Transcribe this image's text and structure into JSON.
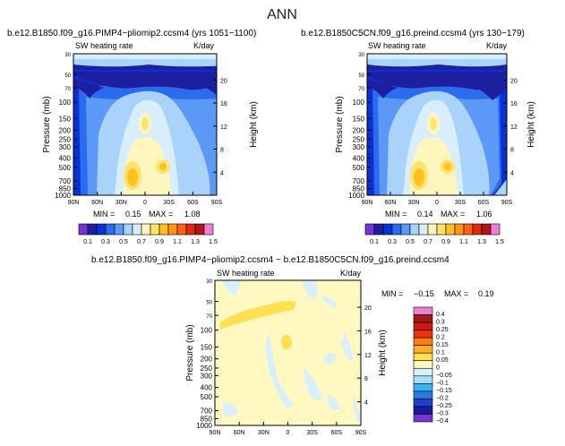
{
  "page": {
    "title": "ANN"
  },
  "chart_data": [
    {
      "type": "heatmap",
      "title": "b.e12.B1850.f09_g16.PIMP4−pliomip2.ccsm4 (yrs 1051−1100)",
      "left_label": "SW heating rate",
      "right_label": "K/day",
      "ylabel": "Pressure (mb)",
      "y2label": "Height (km)",
      "xticks": [
        "90N",
        "60N",
        "30N",
        "0",
        "30S",
        "60S",
        "90S"
      ],
      "yticks": [
        "1000",
        "850",
        "700",
        "500",
        "400",
        "300",
        "250",
        "200",
        "150",
        "100",
        "70",
        "50",
        "30"
      ],
      "y2ticks": [
        "4",
        "8",
        "12",
        "16",
        "20"
      ],
      "stats": {
        "min_label": "MIN =",
        "min": "0.15",
        "max_label": "MAX =",
        "max": "1.08"
      },
      "colorbar": {
        "labels": [
          "0.1",
          "0.3",
          "0.5",
          "0.7",
          "0.9",
          "1.1",
          "1.3",
          "1.5"
        ],
        "colors": [
          "#7b2fd6",
          "#1e1ea0",
          "#0a2fd2",
          "#2b6bf0",
          "#5c98f5",
          "#a9d3fb",
          "#d9eefc",
          "#fff6be",
          "#ffe36b",
          "#ffc020",
          "#ff9414",
          "#f86210",
          "#e02a10",
          "#b01818",
          "#ee7fd0"
        ]
      }
    },
    {
      "type": "heatmap",
      "title": "b.e12.B1850C5CN.f09_g16.preind.ccsm4 (yrs 130−179)",
      "left_label": "SW heating rate",
      "right_label": "K/day",
      "ylabel": "Pressure (mb)",
      "y2label": "Height (km)",
      "xticks": [
        "90N",
        "60N",
        "30N",
        "0",
        "30S",
        "60S",
        "90S"
      ],
      "yticks": [
        "1000",
        "850",
        "700",
        "500",
        "400",
        "300",
        "250",
        "200",
        "150",
        "100",
        "70",
        "50",
        "30"
      ],
      "y2ticks": [
        "4",
        "8",
        "12",
        "16",
        "20"
      ],
      "stats": {
        "min_label": "MIN =",
        "min": "0.14",
        "max_label": "MAX =",
        "max": "1.06"
      }
    },
    {
      "type": "heatmap",
      "title": "b.e12.B1850.f09_g16.PIMP4−pliomip2.ccsm4 − b.e12.B1850C5CN.f09_g16.preind.ccsm4",
      "left_label": "SW heating rate",
      "right_label": "K/day",
      "ylabel": "Pressure (mb)",
      "y2label": "Height (km)",
      "xticks": [
        "90N",
        "60N",
        "30N",
        "0",
        "30S",
        "60S",
        "90S"
      ],
      "yticks": [
        "1000",
        "850",
        "700",
        "500",
        "400",
        "300",
        "250",
        "200",
        "150",
        "100",
        "70",
        "50",
        "30"
      ],
      "y2ticks": [
        "4",
        "8",
        "12",
        "16",
        "20"
      ],
      "stats": {
        "min_label": "MIN =",
        "min": "−0.15",
        "max_label": "MAX =",
        "max": "0.19"
      },
      "colorbar": {
        "labels": [
          "0.4",
          "0.3",
          "0.25",
          "0.2",
          "0.15",
          "0.1",
          "0.05",
          "0",
          "−0.05",
          "−0.1",
          "−0.15",
          "−0.2",
          "−0.25",
          "−0.3",
          "−0.4"
        ],
        "colors": [
          "#ee7fd0",
          "#a01818",
          "#d01818",
          "#f03010",
          "#ff7a10",
          "#ffb020",
          "#ffe050",
          "#fff8c0",
          "#d8f0fc",
          "#a8dcf8",
          "#38b4f0",
          "#2a78e0",
          "#2040c8",
          "#1818a0",
          "#7b2fd6"
        ]
      }
    }
  ]
}
